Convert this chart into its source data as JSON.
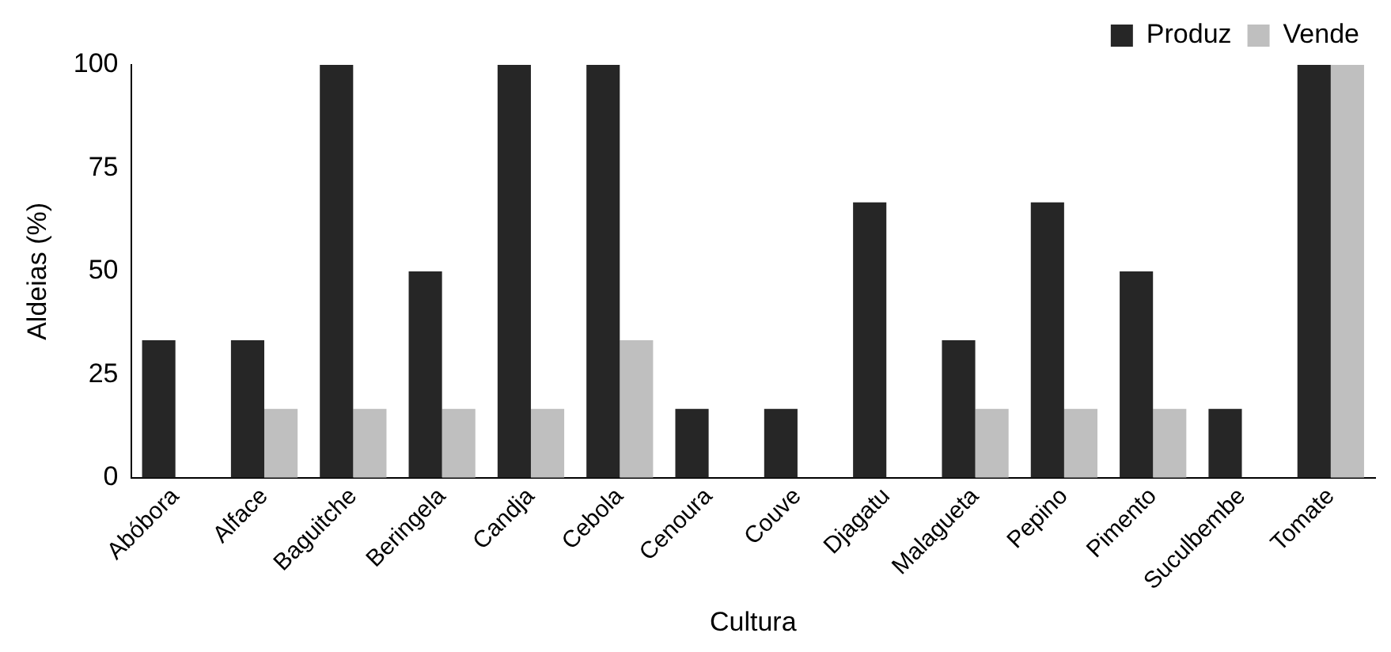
{
  "chart_data": {
    "type": "bar",
    "xlabel": "Cultura",
    "ylabel": "Aldeias (%)",
    "categories": [
      "Abóbora",
      "Alface",
      "Baguitche",
      "Beringela",
      "Candja",
      "Cebola",
      "Cenoura",
      "Couve",
      "Djagatu",
      "Malagueta",
      "Pepino",
      "Pimento",
      "Suculbembe",
      "Tomate"
    ],
    "series": [
      {
        "name": "Produz",
        "color": "#262626",
        "values": [
          33.3,
          33.3,
          100,
          50,
          100,
          100,
          16.7,
          16.7,
          66.7,
          33.3,
          66.7,
          50,
          16.7,
          100
        ]
      },
      {
        "name": "Vende",
        "color": "#bfbfbf",
        "values": [
          0,
          16.7,
          16.7,
          16.7,
          16.7,
          33.3,
          0,
          0,
          0,
          16.7,
          16.7,
          16.7,
          0,
          100
        ]
      }
    ],
    "ylim": [
      0,
      100
    ],
    "yticks": [
      0,
      25,
      50,
      75,
      100
    ],
    "grid": false,
    "legend": "top right"
  }
}
